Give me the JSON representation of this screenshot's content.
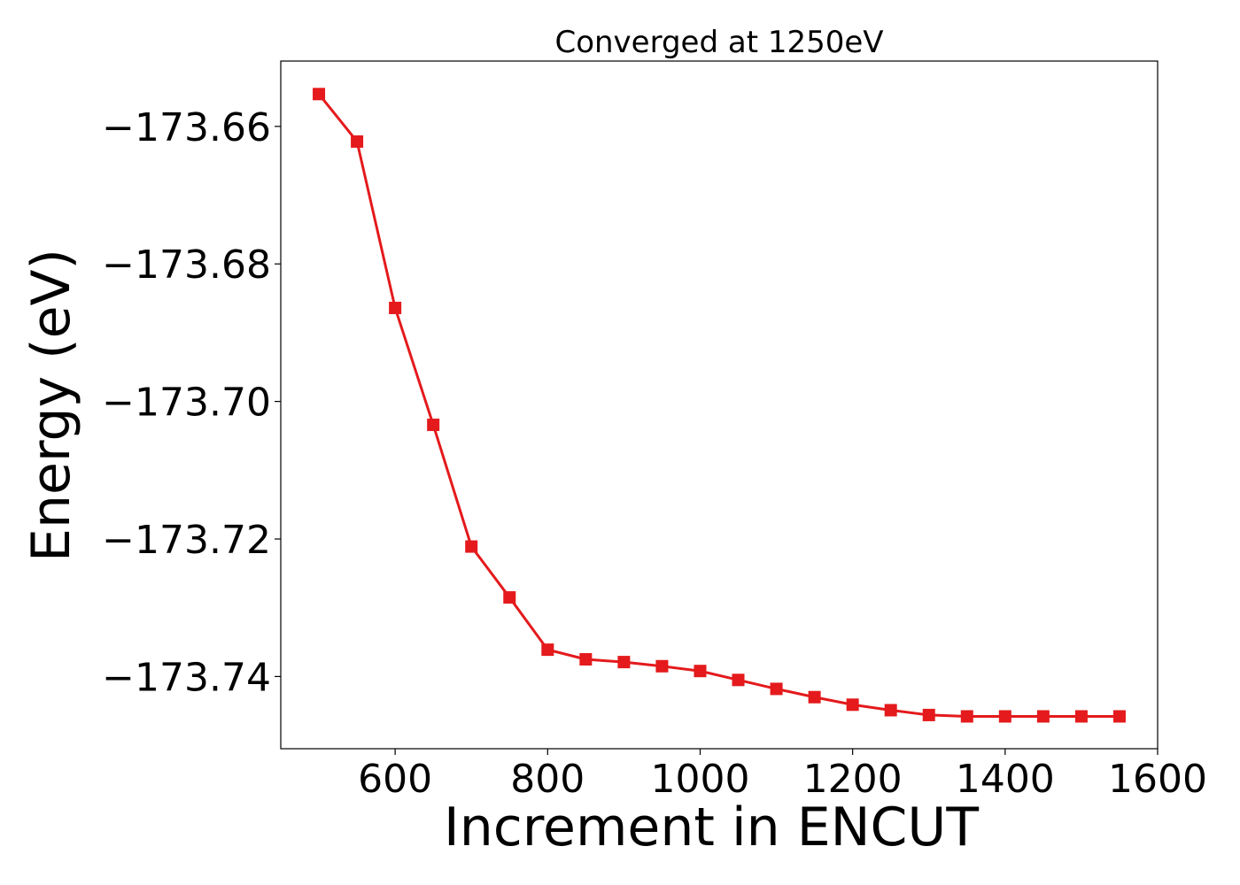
{
  "chart_data": {
    "type": "line",
    "title": "Converged at 1250eV",
    "xlabel": "Increment in ENCUT",
    "ylabel": "Energy (eV)",
    "xlim": [
      450,
      1600
    ],
    "ylim": [
      -173.7505,
      -173.6505
    ],
    "xticks": [
      600,
      800,
      1000,
      1200,
      1400,
      1600
    ],
    "xtick_labels": [
      "600",
      "800",
      "1000",
      "1200",
      "1400",
      "1600"
    ],
    "yticks": [
      -173.66,
      -173.68,
      -173.7,
      -173.72,
      -173.74
    ],
    "ytick_labels": [
      "−173.66",
      "−173.68",
      "−173.70",
      "−173.72",
      "−173.74"
    ],
    "grid": false,
    "marker": "square",
    "series": [
      {
        "color": "#e41a1c",
        "x": [
          500,
          550,
          600,
          650,
          700,
          750,
          800,
          850,
          900,
          950,
          1000,
          1050,
          1100,
          1150,
          1200,
          1250,
          1300,
          1350,
          1400,
          1450,
          1500,
          1550
        ],
        "y": [
          -173.6553,
          -173.6622,
          -173.6864,
          -173.7034,
          -173.7211,
          -173.7285,
          -173.7361,
          -173.7375,
          -173.7379,
          -173.7385,
          -173.7392,
          -173.7405,
          -173.7418,
          -173.743,
          -173.7441,
          -173.7449,
          -173.7456,
          -173.7458,
          -173.7458,
          -173.7458,
          -173.7458,
          -173.7458
        ]
      }
    ]
  }
}
